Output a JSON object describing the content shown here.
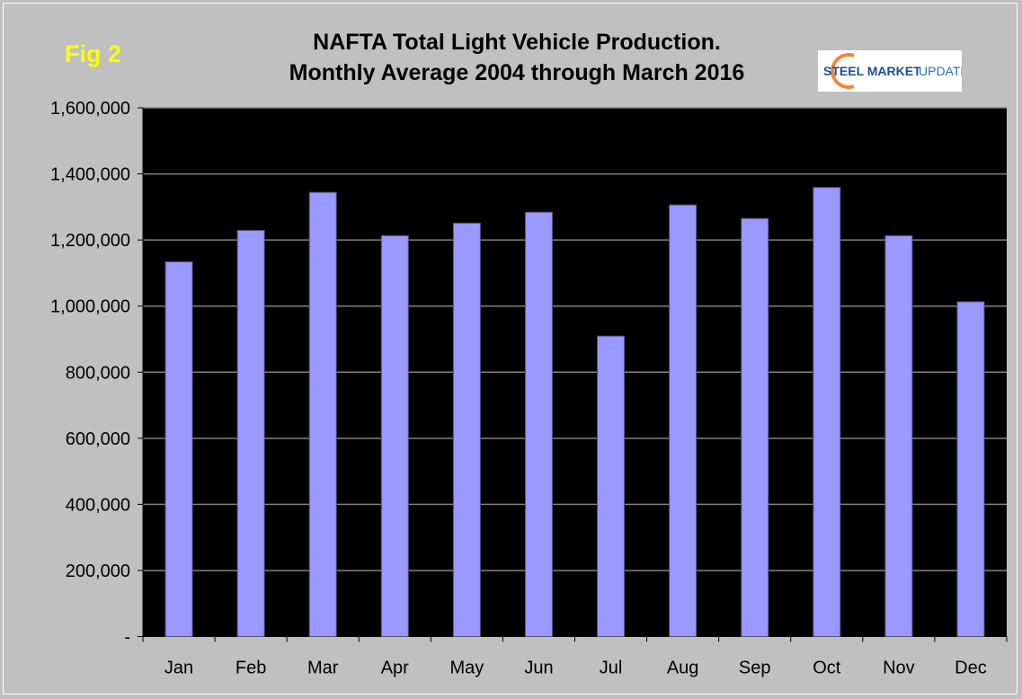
{
  "figure_label": "Fig 2",
  "logo": {
    "text_bold": "STEEL MARKET",
    "text_light": "UPDATE",
    "colors": {
      "blue": "#1f4e9a",
      "orange": "#f07020"
    }
  },
  "chart_data": {
    "type": "bar",
    "title": [
      "NAFTA Total Light Vehicle Production.",
      "Monthly Average 2004 through March 2016"
    ],
    "xlabel": "",
    "ylabel": "",
    "categories": [
      "Jan",
      "Feb",
      "Mar",
      "Apr",
      "May",
      "Jun",
      "Jul",
      "Aug",
      "Sep",
      "Oct",
      "Nov",
      "Dec"
    ],
    "values": [
      1134000,
      1229000,
      1344000,
      1213000,
      1251000,
      1284000,
      909000,
      1306000,
      1265000,
      1359000,
      1213000,
      1013000
    ],
    "ylim": [
      0,
      1600000
    ],
    "yticks": [
      0,
      200000,
      400000,
      600000,
      800000,
      1000000,
      1200000,
      1400000,
      1600000
    ],
    "ytick_labels": [
      "-",
      "200,000",
      "400,000",
      "600,000",
      "800,000",
      "1,000,000",
      "1,200,000",
      "1,400,000",
      "1,600,000"
    ],
    "grid": true,
    "legend": "none",
    "colors": {
      "bar": "#9999ff",
      "plot_background": "#000000",
      "gridline": "#808080",
      "page_background": "#c0c0c0"
    }
  }
}
